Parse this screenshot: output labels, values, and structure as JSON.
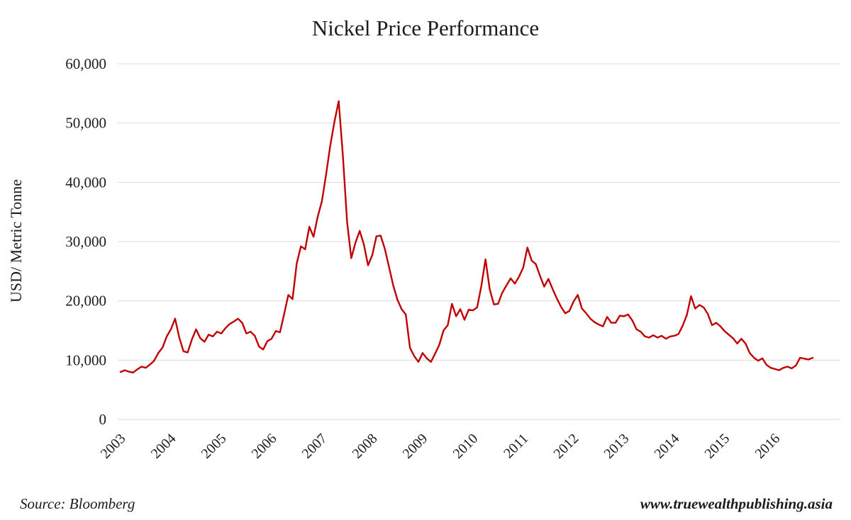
{
  "chart_data": {
    "type": "line",
    "title": "Nickel Price Performance",
    "xlabel": "",
    "ylabel": "USD/ Metric Tonne",
    "ylim": [
      0,
      60000
    ],
    "yticks": [
      0,
      10000,
      20000,
      30000,
      40000,
      50000,
      60000
    ],
    "x_ticks": [
      2003,
      2004,
      2005,
      2006,
      2007,
      2008,
      2009,
      2010,
      2011,
      2012,
      2013,
      2014,
      2015,
      2016
    ],
    "x_min": 2003,
    "x_max": 2017.3,
    "grid": true,
    "legend_position": "none",
    "line_color": "#c00000",
    "grid_color": "#d9d9d9",
    "text_color": "#1c1c1c",
    "series": [
      {
        "name": "Nickel price",
        "unit": "USD/ Metric Tonne",
        "frequency": "monthly",
        "start_year": 2003,
        "values": [
          8000,
          8300,
          8050,
          7900,
          8450,
          8900,
          8700,
          9250,
          9900,
          11200,
          12100,
          14000,
          15200,
          17000,
          13800,
          11500,
          11300,
          13500,
          15200,
          13700,
          13100,
          14300,
          14000,
          14800,
          14500,
          15400,
          16100,
          16500,
          17000,
          16300,
          14500,
          14800,
          14100,
          12300,
          11800,
          13200,
          13600,
          14900,
          14700,
          17800,
          21000,
          20300,
          26300,
          29200,
          28700,
          32500,
          30800,
          34200,
          36800,
          41300,
          46200,
          50300,
          53700,
          44500,
          33400,
          27200,
          29800,
          31800,
          29500,
          26000,
          27700,
          30900,
          31000,
          28800,
          25700,
          22600,
          20200,
          18600,
          17700,
          12100,
          10700,
          9700,
          11200,
          10300,
          9700,
          11100,
          12600,
          15000,
          15900,
          19500,
          17400,
          18600,
          16800,
          18500,
          18400,
          18900,
          22500,
          27000,
          22000,
          19400,
          19500,
          21400,
          22600,
          23800,
          22900,
          24100,
          25600,
          29000,
          26800,
          26200,
          24200,
          22400,
          23700,
          22000,
          20400,
          19000,
          17900,
          18300,
          19900,
          21000,
          18700,
          17900,
          17000,
          16400,
          16000,
          15700,
          17300,
          16300,
          16300,
          17500,
          17400,
          17700,
          16700,
          15200,
          14800,
          14000,
          13800,
          14200,
          13800,
          14100,
          13600,
          14000,
          14100,
          14400,
          15800,
          17600,
          20800,
          18700,
          19300,
          18900,
          17800,
          15900,
          16300,
          15700,
          14900,
          14300,
          13700,
          12800,
          13600,
          12800,
          11200,
          10400,
          9900,
          10300,
          9200,
          8700,
          8500,
          8300,
          8700,
          8900,
          8600,
          9100,
          10400,
          10250,
          10100,
          10400
        ]
      }
    ]
  },
  "footer": {
    "source": "Source: Bloomberg",
    "website": "www.truewealthpublishing.asia"
  }
}
